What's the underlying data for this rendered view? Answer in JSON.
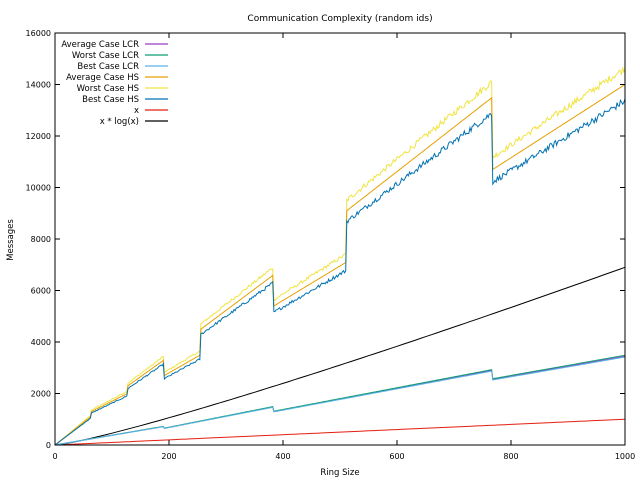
{
  "chart_data": {
    "type": "line",
    "title": "Communication Complexity (random ids)",
    "xlabel": "Ring Size",
    "ylabel": "Messages",
    "xlim": [
      0,
      1000
    ],
    "ylim": [
      0,
      16000
    ],
    "xticks": [
      "0",
      "200",
      "400",
      "600",
      "800",
      "1000"
    ],
    "yticks": [
      "0",
      "2000",
      "4000",
      "6000",
      "8000",
      "10000",
      "12000",
      "14000",
      "16000"
    ],
    "grid": false,
    "legend_position": "top-left",
    "series": [
      {
        "name": "Average Case LCR",
        "color": "#9b3fc6",
        "formula": "lcr_avg"
      },
      {
        "name": "Worst Case LCR",
        "color": "#0e9d73",
        "formula": "lcr_worst"
      },
      {
        "name": "Best Case LCR",
        "color": "#5ab4e6",
        "formula": "lcr_best"
      },
      {
        "name": "Average Case HS",
        "color": "#e69f00",
        "formula": "hs_avg"
      },
      {
        "name": "Worst Case HS",
        "color": "#f0e442",
        "formula": "hs_worst"
      },
      {
        "name": "Best Case HS",
        "color": "#0072b2",
        "formula": "hs_best"
      },
      {
        "name": "x",
        "color": "#e51e10",
        "formula": "x"
      },
      {
        "name": "x * log(x)",
        "color": "#000000",
        "formula": "xlogx"
      }
    ],
    "key_points": {
      "hs_avg": [
        [
          0,
          0
        ],
        [
          63,
          1100
        ],
        [
          64,
          1300
        ],
        [
          127,
          2000
        ],
        [
          128,
          2300
        ],
        [
          191,
          3300
        ],
        [
          192,
          2700
        ],
        [
          255,
          3500
        ],
        [
          256,
          4500
        ],
        [
          383,
          6600
        ],
        [
          384,
          5400
        ],
        [
          511,
          7100
        ],
        [
          512,
          9100
        ],
        [
          767,
          13500
        ],
        [
          768,
          10700
        ],
        [
          1000,
          14000
        ]
      ],
      "lcr_avg": [
        [
          0,
          0
        ],
        [
          191,
          720
        ],
        [
          192,
          650
        ],
        [
          383,
          1480
        ],
        [
          384,
          1300
        ],
        [
          767,
          2900
        ],
        [
          768,
          2550
        ],
        [
          1000,
          3450
        ]
      ],
      "x": [
        [
          0,
          0
        ],
        [
          1000,
          1000
        ]
      ],
      "xlogx": [
        [
          0,
          0
        ],
        [
          1000,
          6900
        ]
      ]
    }
  }
}
